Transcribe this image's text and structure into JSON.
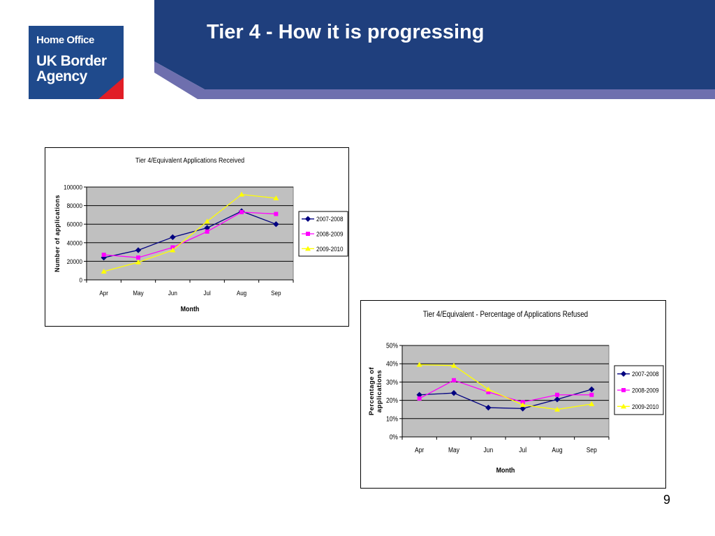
{
  "slide": {
    "title": "Tier 4 - How it is progressing",
    "page_number": "9",
    "logo": {
      "org": "Home Office",
      "agency": "UK Border Agency"
    }
  },
  "colors": {
    "header_blue": "#1f3f7d",
    "header_band": "#6e6fae",
    "logo_blue": "#1f4a8c",
    "logo_red": "#e11d26",
    "plot_bg": "#c0c0c0",
    "series_2007_2008": "#000080",
    "series_2008_2009": "#ff00ff",
    "series_2009_2010": "#ffff00"
  },
  "chart_data": [
    {
      "type": "line",
      "title": "Tier 4/Equivalent Applications Received",
      "xlabel": "Month",
      "ylabel": "Number of applications",
      "categories": [
        "Apr",
        "May",
        "Jun",
        "Jul",
        "Aug",
        "Sep"
      ],
      "ylim": [
        0,
        100000
      ],
      "yticks": [
        0,
        20000,
        40000,
        60000,
        80000,
        100000
      ],
      "ytick_labels": [
        "0",
        "20000",
        "40000",
        "60000",
        "80000",
        "100000"
      ],
      "grid": true,
      "legend_position": "right",
      "series": [
        {
          "name": "2007-2008",
          "marker": "diamond",
          "color": "#000080",
          "values": [
            24000,
            32000,
            46000,
            56000,
            74000,
            60000
          ]
        },
        {
          "name": "2008-2009",
          "marker": "square",
          "color": "#ff00ff",
          "values": [
            27000,
            24000,
            35000,
            52000,
            73000,
            71000
          ]
        },
        {
          "name": "2009-2010",
          "marker": "triangle",
          "color": "#ffff00",
          "values": [
            9000,
            19000,
            32000,
            63000,
            92000,
            88000
          ]
        }
      ]
    },
    {
      "type": "line",
      "title": "Tier 4/Equivalent - Percentage of Applications Refused",
      "xlabel": "Month",
      "ylabel_lines": [
        "Percentage of",
        "applications"
      ],
      "categories": [
        "Apr",
        "May",
        "Jun",
        "Jul",
        "Aug",
        "Sep"
      ],
      "ylim": [
        0,
        50
      ],
      "yticks": [
        0,
        10,
        20,
        30,
        40,
        50
      ],
      "ytick_labels": [
        "0%",
        "10%",
        "20%",
        "30%",
        "40%",
        "50%"
      ],
      "grid": true,
      "legend_position": "right",
      "series": [
        {
          "name": "2007-2008",
          "marker": "diamond",
          "color": "#000080",
          "values": [
            23,
            24,
            16,
            15.5,
            20.5,
            26
          ]
        },
        {
          "name": "2008-2009",
          "marker": "square",
          "color": "#ff00ff",
          "values": [
            21,
            31,
            24.5,
            19,
            23,
            23
          ]
        },
        {
          "name": "2009-2010",
          "marker": "triangle",
          "color": "#ffff00",
          "values": [
            39.5,
            39,
            26,
            17.5,
            15,
            18
          ]
        }
      ]
    }
  ]
}
